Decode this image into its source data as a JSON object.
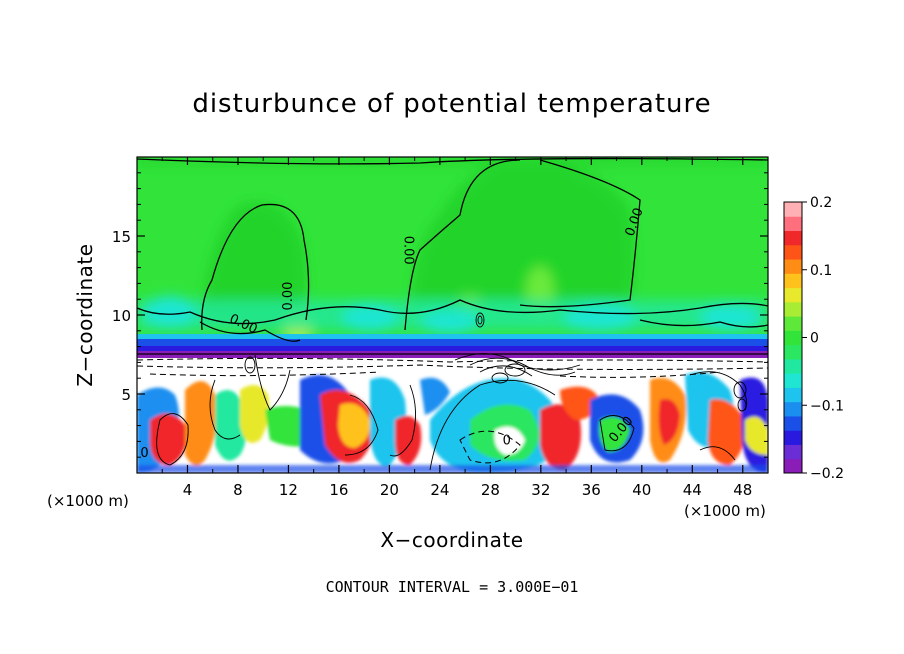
{
  "chart_data": {
    "type": "heatmap",
    "title": "disturbunce of potential temperature",
    "xlabel": "X−coordinate",
    "ylabel": "Z−coordinate",
    "x_unit_left": "(×1000 m)",
    "x_unit_right": "(×1000 m)",
    "x_ticks": [
      4,
      8,
      12,
      16,
      20,
      24,
      28,
      32,
      36,
      40,
      44,
      48
    ],
    "x_tick_labels": [
      "4",
      "8",
      "12",
      "16",
      "20",
      "24",
      "28",
      "32",
      "36",
      "40",
      "44",
      "48"
    ],
    "y_ticks": [
      5,
      10,
      15
    ],
    "y_tick_labels": [
      "5",
      "10",
      "15"
    ],
    "xlim": [
      0,
      50
    ],
    "ylim": [
      0,
      20
    ],
    "colorbar": {
      "range": [
        -0.2,
        0.2
      ],
      "ticks": [
        0.2,
        0.1,
        0,
        -0.1,
        -0.2
      ],
      "tick_labels": [
        "0.2",
        "0.1",
        "0",
        "−0.1",
        "−0.2"
      ],
      "colors": [
        "#8a1cb8",
        "#6a2dd6",
        "#2a1ae0",
        "#1a4fe8",
        "#1b8ff0",
        "#1fc4ee",
        "#1ee6d2",
        "#21e8a0",
        "#2ae660",
        "#32e43a",
        "#5ee83a",
        "#a8ec34",
        "#e8e82c",
        "#ffc21c",
        "#ff8c14",
        "#ff5418",
        "#f0282a",
        "#ff6f7e",
        "#ffb0b4"
      ]
    },
    "contour_labels": [
      {
        "text": "0.00",
        "x": 12.3,
        "z": 11.2,
        "rotate": -90
      },
      {
        "text": "0.00",
        "x": 21.2,
        "z": 14.1,
        "rotate": 90
      },
      {
        "text": "0.00",
        "x": 39.7,
        "z": 15.8,
        "rotate": -70
      },
      {
        "text": "0.00",
        "x": 8.3,
        "z": 9.2,
        "rotate": 25
      },
      {
        "text": "0.00",
        "x": 38.6,
        "z": 2.6,
        "rotate": -50
      },
      {
        "text": "0",
        "x": 0.6,
        "z": 1.0,
        "rotate": 0
      },
      {
        "text": "0",
        "x": 29.3,
        "z": 1.8,
        "rotate": 0
      }
    ],
    "note": "CONTOUR INTERVAL = 3.000E−01"
  }
}
